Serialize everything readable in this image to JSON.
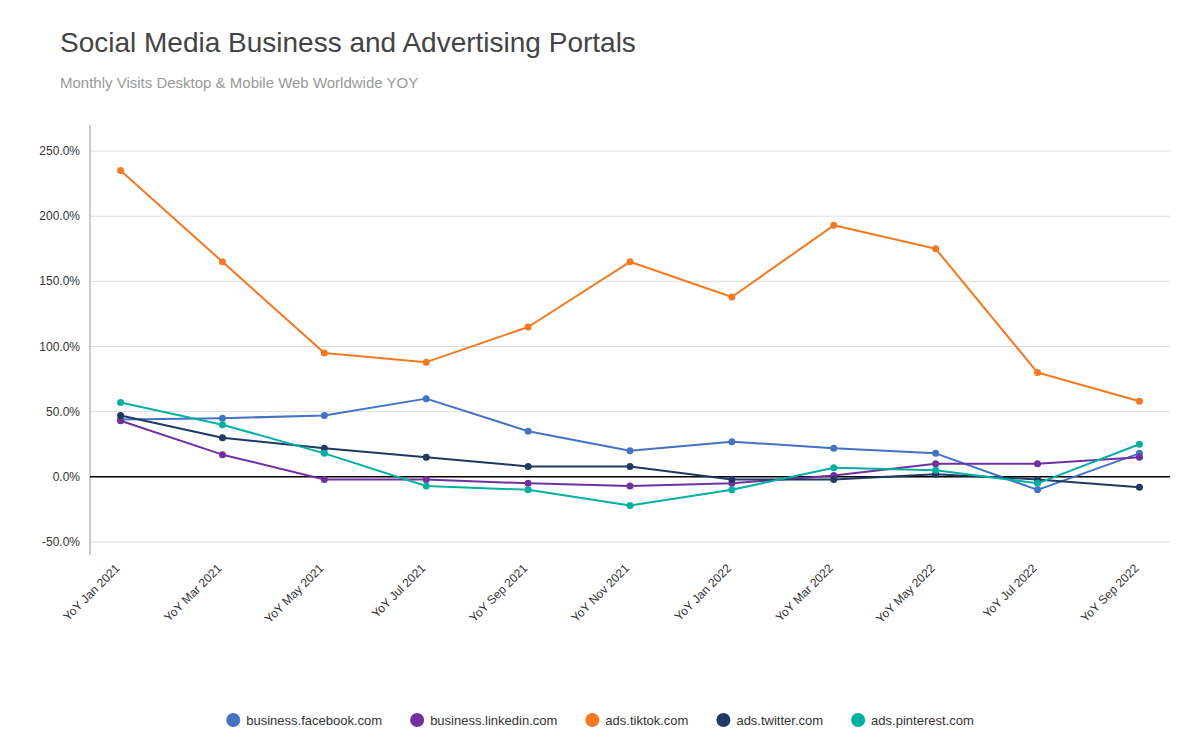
{
  "chart_data": {
    "type": "line",
    "title": "Social Media Business and Advertising Portals",
    "subtitle": "Monthly Visits Desktop & Mobile Web Worldwide YOY",
    "categories": [
      "YoY Jan 2021",
      "YoY Mar 2021",
      "YoY May 2021",
      "YoY Jul 2021",
      "YoY Sep 2021",
      "YoY Nov 2021",
      "YoY Jan 2022",
      "YoY Mar 2022",
      "YoY May 2022",
      "YoY Jul 2022",
      "YoY Sep 2022"
    ],
    "series": [
      {
        "name": "business.facebook.com",
        "color": "#4472C4",
        "values": [
          0.44,
          0.45,
          0.47,
          0.6,
          0.35,
          0.2,
          0.27,
          0.22,
          0.18,
          -0.1,
          0.18
        ]
      },
      {
        "name": "business.linkedin.com",
        "color": "#7030A0",
        "values": [
          0.43,
          0.17,
          -0.02,
          -0.02,
          -0.05,
          -0.07,
          -0.05,
          0.01,
          0.1,
          0.1,
          0.15
        ]
      },
      {
        "name": "ads.tiktok.com",
        "color": "#F47920",
        "values": [
          2.35,
          1.65,
          0.95,
          0.88,
          1.15,
          1.65,
          1.38,
          1.93,
          1.75,
          0.8,
          0.58
        ]
      },
      {
        "name": "ads.twitter.com",
        "color": "#1F3864",
        "values": [
          0.47,
          0.3,
          0.22,
          0.15,
          0.08,
          0.08,
          -0.02,
          -0.02,
          0.02,
          -0.02,
          -0.08
        ]
      },
      {
        "name": "ads.pinterest.com",
        "color": "#00B0A0",
        "values": [
          0.57,
          0.4,
          0.18,
          -0.07,
          -0.1,
          -0.22,
          -0.1,
          0.07,
          0.05,
          -0.05,
          0.25
        ]
      }
    ],
    "ylim": [
      -0.6,
      2.7
    ],
    "yticks": [
      {
        "value": -0.5,
        "label": "-50.0%"
      },
      {
        "value": 0.0,
        "label": "0.0%"
      },
      {
        "value": 0.5,
        "label": "50.0%"
      },
      {
        "value": 1.0,
        "label": "100.0%"
      },
      {
        "value": 1.5,
        "label": "150.0%"
      },
      {
        "value": 2.0,
        "label": "200.0%"
      },
      {
        "value": 2.5,
        "label": "250.0%"
      }
    ],
    "grid": true,
    "legend": "bottom",
    "marker": "circle"
  }
}
